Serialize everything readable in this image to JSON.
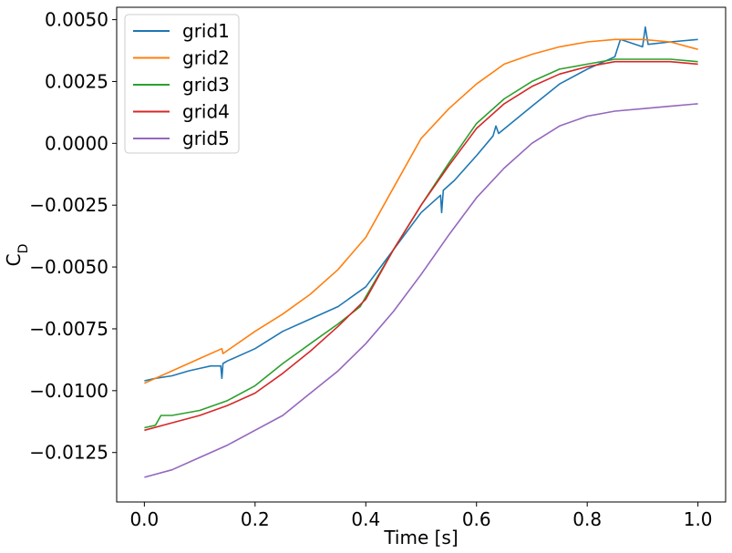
{
  "chart_data": {
    "type": "line",
    "xlabel": "Time [s]",
    "ylabel": "C_D",
    "xlim": [
      -0.05,
      1.05
    ],
    "ylim": [
      -0.0145,
      0.0055
    ],
    "x_ticks": [
      "0.0",
      "0.2",
      "0.4",
      "0.6",
      "0.8",
      "1.0"
    ],
    "x_tick_values": [
      0.0,
      0.2,
      0.4,
      0.6,
      0.8,
      1.0
    ],
    "y_ticks": [
      "−0.0125",
      "−0.0100",
      "−0.0075",
      "−0.0050",
      "−0.0025",
      "0.0000",
      "0.0025",
      "0.0050"
    ],
    "y_tick_values": [
      -0.0125,
      -0.01,
      -0.0075,
      -0.005,
      -0.0025,
      0.0,
      0.0025,
      0.005
    ],
    "grid": false,
    "legend_position": "top-left",
    "series": [
      {
        "name": "grid1",
        "color": "#1f77b4",
        "x": [
          0.0,
          0.02,
          0.05,
          0.08,
          0.1,
          0.12,
          0.138,
          0.14,
          0.142,
          0.15,
          0.2,
          0.25,
          0.3,
          0.35,
          0.4,
          0.45,
          0.5,
          0.535,
          0.537,
          0.54,
          0.56,
          0.6,
          0.63,
          0.635,
          0.64,
          0.7,
          0.75,
          0.8,
          0.85,
          0.86,
          0.9,
          0.905,
          0.91,
          0.95,
          1.0
        ],
        "y": [
          -0.0096,
          -0.0095,
          -0.0094,
          -0.0092,
          -0.0091,
          -0.009,
          -0.009,
          -0.0095,
          -0.0089,
          -0.0088,
          -0.0083,
          -0.0076,
          -0.0071,
          -0.0066,
          -0.0058,
          -0.0043,
          -0.0028,
          -0.0021,
          -0.0028,
          -0.0019,
          -0.0015,
          -0.0005,
          0.0003,
          0.0007,
          0.0004,
          0.0015,
          0.0024,
          0.003,
          0.0035,
          0.0042,
          0.0039,
          0.0047,
          0.004,
          0.0041,
          0.0042
        ]
      },
      {
        "name": "grid2",
        "color": "#ff7f0e",
        "x": [
          0.0,
          0.05,
          0.1,
          0.14,
          0.142,
          0.2,
          0.25,
          0.3,
          0.35,
          0.4,
          0.45,
          0.5,
          0.55,
          0.6,
          0.65,
          0.7,
          0.75,
          0.8,
          0.85,
          0.9,
          0.95,
          1.0
        ],
        "y": [
          -0.0097,
          -0.0092,
          -0.0087,
          -0.0083,
          -0.0085,
          -0.0076,
          -0.0069,
          -0.0061,
          -0.0051,
          -0.0038,
          -0.0018,
          0.0002,
          0.0014,
          0.0024,
          0.0032,
          0.0036,
          0.0039,
          0.0041,
          0.0042,
          0.0042,
          0.0041,
          0.0038
        ]
      },
      {
        "name": "grid3",
        "color": "#2ca02c",
        "x": [
          0.0,
          0.02,
          0.03,
          0.05,
          0.1,
          0.15,
          0.2,
          0.25,
          0.3,
          0.35,
          0.39,
          0.4,
          0.45,
          0.5,
          0.55,
          0.6,
          0.65,
          0.7,
          0.75,
          0.8,
          0.85,
          0.9,
          0.95,
          1.0
        ],
        "y": [
          -0.0115,
          -0.0114,
          -0.011,
          -0.011,
          -0.0108,
          -0.0104,
          -0.0098,
          -0.0089,
          -0.0081,
          -0.0073,
          -0.0066,
          -0.0062,
          -0.0043,
          -0.0025,
          -0.0008,
          0.0008,
          0.0018,
          0.0025,
          0.003,
          0.0032,
          0.0034,
          0.0034,
          0.0034,
          0.0033
        ]
      },
      {
        "name": "grid4",
        "color": "#d62728",
        "x": [
          0.0,
          0.05,
          0.1,
          0.15,
          0.2,
          0.25,
          0.3,
          0.35,
          0.4,
          0.45,
          0.5,
          0.55,
          0.6,
          0.65,
          0.7,
          0.75,
          0.8,
          0.85,
          0.9,
          0.95,
          1.0
        ],
        "y": [
          -0.0116,
          -0.0113,
          -0.011,
          -0.0106,
          -0.0101,
          -0.0093,
          -0.0084,
          -0.0074,
          -0.0063,
          -0.0043,
          -0.0025,
          -0.0009,
          0.0006,
          0.0016,
          0.0023,
          0.0028,
          0.0031,
          0.0033,
          0.0033,
          0.0033,
          0.0032
        ]
      },
      {
        "name": "grid5",
        "color": "#9467bd",
        "x": [
          0.0,
          0.05,
          0.1,
          0.15,
          0.2,
          0.25,
          0.3,
          0.35,
          0.4,
          0.45,
          0.5,
          0.55,
          0.6,
          0.65,
          0.7,
          0.75,
          0.8,
          0.85,
          0.9,
          0.95,
          1.0
        ],
        "y": [
          -0.0135,
          -0.0132,
          -0.0127,
          -0.0122,
          -0.0116,
          -0.011,
          -0.0101,
          -0.0092,
          -0.0081,
          -0.0068,
          -0.0053,
          -0.0037,
          -0.0022,
          -0.001,
          0.0,
          0.0007,
          0.0011,
          0.0013,
          0.0014,
          0.0015,
          0.0016
        ]
      }
    ]
  }
}
